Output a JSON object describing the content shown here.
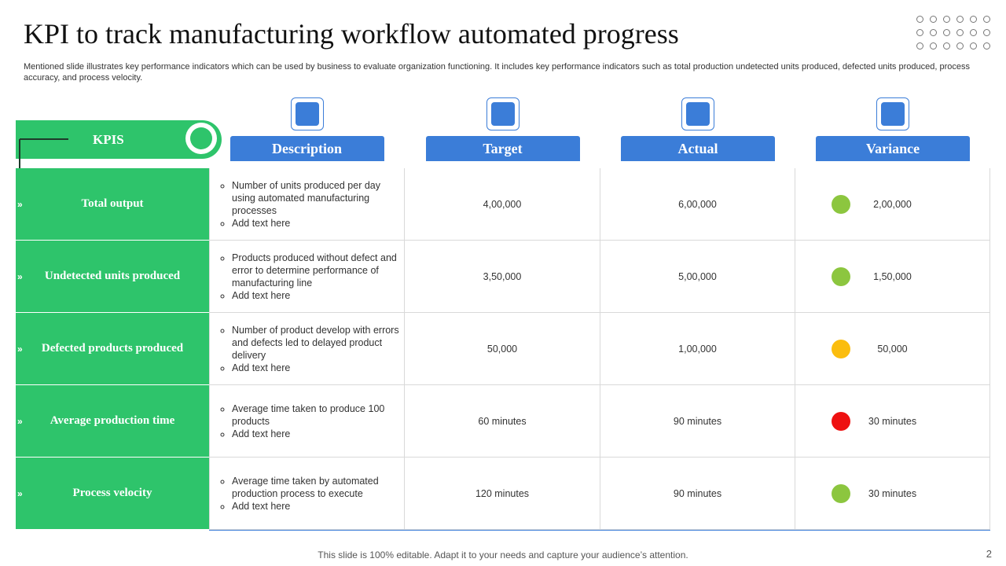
{
  "header": {
    "title": "KPI to track manufacturing workflow automated progress",
    "subtitle": "Mentioned slide illustrates key performance indicators which can be used by business to evaluate organization functioning. It includes key performance indicators such as total production undetected units produced, defected units produced, process accuracy, and process velocity."
  },
  "table": {
    "kpi_header": "KPIS",
    "columns": [
      "Description",
      "Target",
      "Actual",
      "Variance"
    ],
    "rows": [
      {
        "kpi": "Total output",
        "description": [
          "Number of units produced per day using automated manufacturing processes",
          "Add text here"
        ],
        "target": "4,00,000",
        "actual": "6,00,000",
        "variance": "2,00,000",
        "status_color": "#8cc63f"
      },
      {
        "kpi": "Undetected units produced",
        "description": [
          "Products produced without defect and error to determine performance of manufacturing line",
          "Add text here"
        ],
        "target": "3,50,000",
        "actual": "5,00,000",
        "variance": "1,50,000",
        "status_color": "#8cc63f"
      },
      {
        "kpi": "Defected products produced",
        "description": [
          "Number of product develop with errors and defects led to delayed product delivery",
          "Add text here"
        ],
        "target": "50,000",
        "actual": "1,00,000",
        "variance": "50,000",
        "status_color": "#fbbd0e"
      },
      {
        "kpi": "Average production time",
        "description": [
          "Average time taken to produce 100 products",
          "Add text here"
        ],
        "target": "60 minutes",
        "actual": "90 minutes",
        "variance": "30 minutes",
        "status_color": "#ee1111"
      },
      {
        "kpi": "Process velocity",
        "description": [
          "Average time taken by automated production process to execute",
          "Add text here"
        ],
        "target": "120 minutes",
        "actual": "90 minutes",
        "variance": "30 minutes",
        "status_color": "#8cc63f"
      }
    ]
  },
  "footer": {
    "note": "This slide is 100% editable. Adapt it to your needs and capture your audience’s attention.",
    "page_number": "2"
  }
}
